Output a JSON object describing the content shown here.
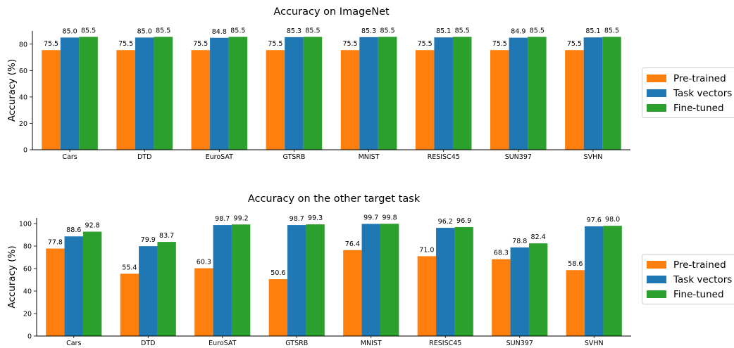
{
  "chart_data": [
    {
      "type": "bar",
      "title": "Accuracy on ImageNet",
      "xlabel": "",
      "ylabel": "Accuracy (%)",
      "ylim": [
        0,
        90
      ],
      "yticks": [
        0,
        20,
        40,
        60,
        80
      ],
      "grid": false,
      "legend_position": "right",
      "categories": [
        "Cars",
        "DTD",
        "EuroSAT",
        "GTSRB",
        "MNIST",
        "RESISC45",
        "SUN397",
        "SVHN"
      ],
      "series": [
        {
          "name": "Pre-trained",
          "color": "#ff7f0e",
          "values": [
            75.5,
            75.5,
            75.5,
            75.5,
            75.5,
            75.5,
            75.5,
            75.5
          ]
        },
        {
          "name": "Task vectors",
          "color": "#1f77b4",
          "values": [
            85.0,
            85.0,
            84.8,
            85.3,
            85.3,
            85.1,
            84.9,
            85.1
          ]
        },
        {
          "name": "Fine-tuned",
          "color": "#2ca02c",
          "values": [
            85.5,
            85.5,
            85.5,
            85.5,
            85.5,
            85.5,
            85.5,
            85.5
          ]
        }
      ]
    },
    {
      "type": "bar",
      "title": "Accuracy on the other target task",
      "xlabel": "",
      "ylabel": "Accuracy (%)",
      "ylim": [
        0,
        105
      ],
      "yticks": [
        0,
        20,
        40,
        60,
        80,
        100
      ],
      "grid": false,
      "legend_position": "right",
      "categories": [
        "Cars",
        "DTD",
        "EuroSAT",
        "GTSRB",
        "MNIST",
        "RESISC45",
        "SUN397",
        "SVHN"
      ],
      "series": [
        {
          "name": "Pre-trained",
          "color": "#ff7f0e",
          "values": [
            77.8,
            55.4,
            60.3,
            50.6,
            76.4,
            71.0,
            68.3,
            58.6
          ]
        },
        {
          "name": "Task vectors",
          "color": "#1f77b4",
          "values": [
            88.6,
            79.9,
            98.7,
            98.7,
            99.7,
            96.2,
            78.8,
            97.6
          ]
        },
        {
          "name": "Fine-tuned",
          "color": "#2ca02c",
          "values": [
            92.8,
            83.7,
            99.2,
            99.3,
            99.8,
            96.9,
            82.4,
            98.0
          ]
        }
      ]
    }
  ]
}
